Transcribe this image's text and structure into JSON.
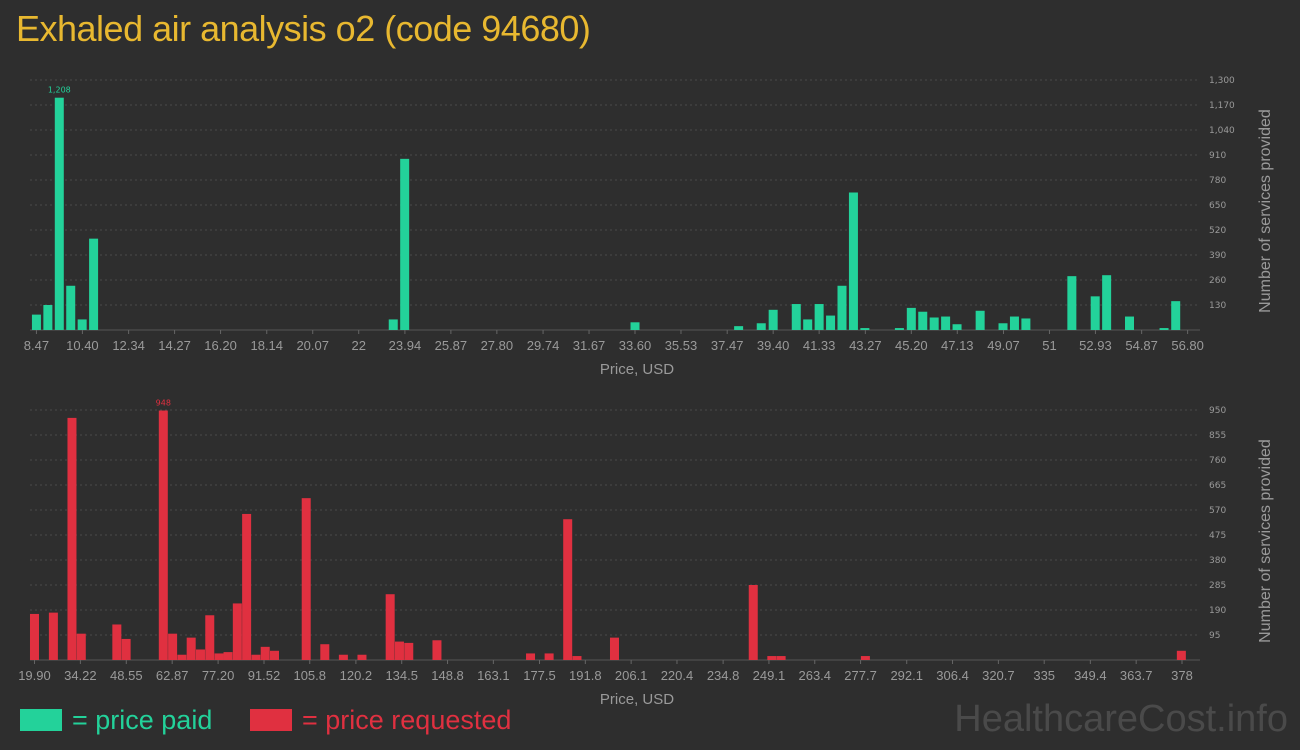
{
  "title": "Exhaled air analysis o2 (code 94680)",
  "watermark": "HealthcareCost.info",
  "legend": {
    "paid_label": "= price paid",
    "requested_label": "= price requested"
  },
  "colors": {
    "paid": "#23d29a",
    "requested": "#e03040",
    "grid": "#4a4a4a",
    "tick_text": "#9a9a9a",
    "background": "#2e2e2e"
  },
  "chart_data": [
    {
      "type": "bar",
      "name": "price paid",
      "xlabel": "Price, USD",
      "ylabel": "Number of services provided",
      "ylim": [
        0,
        1300
      ],
      "yticks": [
        130,
        260,
        390,
        520,
        650,
        780,
        910,
        1040,
        1170,
        1300
      ],
      "ytick_labels": [
        "130",
        "260",
        "390",
        "520",
        "650",
        "780",
        "910",
        "1,040",
        "1,170",
        "1,300"
      ],
      "xlim": [
        8.2,
        56.9
      ],
      "xticks": [
        8.47,
        10.4,
        12.34,
        14.27,
        16.2,
        18.14,
        20.07,
        22,
        23.94,
        25.87,
        27.8,
        29.74,
        31.67,
        33.6,
        35.53,
        37.47,
        39.4,
        41.33,
        43.27,
        45.2,
        47.13,
        49.07,
        51,
        52.93,
        54.87,
        56.8
      ],
      "xtick_labels": [
        "8.47",
        "10.40",
        "12.34",
        "14.27",
        "16.20",
        "18.14",
        "20.07",
        "22",
        "23.94",
        "25.87",
        "27.80",
        "29.74",
        "31.67",
        "33.60",
        "35.53",
        "37.47",
        "39.40",
        "41.33",
        "43.27",
        "45.20",
        "47.13",
        "49.07",
        "51",
        "52.93",
        "54.87",
        "56.80"
      ],
      "peak_label": "1,208",
      "x": [
        8.47,
        8.95,
        9.43,
        9.91,
        10.39,
        10.87,
        23.45,
        23.93,
        33.6,
        37.95,
        38.9,
        39.4,
        40.37,
        40.85,
        41.33,
        41.81,
        42.29,
        42.77,
        43.25,
        44.7,
        45.2,
        45.68,
        46.16,
        46.64,
        47.12,
        48.09,
        49.05,
        49.53,
        50.01,
        51.94,
        52.92,
        53.4,
        54.36,
        55.81,
        56.3
      ],
      "values": [
        80,
        130,
        1208,
        230,
        55,
        475,
        55,
        890,
        40,
        20,
        35,
        105,
        135,
        55,
        135,
        75,
        230,
        715,
        10,
        10,
        115,
        95,
        65,
        70,
        30,
        100,
        35,
        70,
        60,
        280,
        175,
        285,
        70,
        10,
        150
      ]
    },
    {
      "type": "bar",
      "name": "price requested",
      "xlabel": "Price, USD",
      "ylabel": "Number of services provided",
      "ylim": [
        0,
        950
      ],
      "yticks": [
        95,
        190,
        285,
        380,
        475,
        570,
        665,
        760,
        855,
        950
      ],
      "ytick_labels": [
        "95",
        "190",
        "285",
        "380",
        "475",
        "570",
        "665",
        "760",
        "855",
        "950"
      ],
      "xlim": [
        18.5,
        380.5
      ],
      "xticks": [
        19.9,
        34.22,
        48.55,
        62.87,
        77.2,
        91.52,
        105.8,
        120.2,
        134.5,
        148.8,
        163.1,
        177.5,
        191.8,
        206.1,
        220.4,
        234.8,
        249.1,
        263.4,
        277.7,
        292.1,
        306.4,
        320.7,
        335,
        349.4,
        363.7,
        378
      ],
      "xtick_labels": [
        "19.90",
        "34.22",
        "48.55",
        "62.87",
        "77.20",
        "91.52",
        "105.8",
        "120.2",
        "134.5",
        "148.8",
        "163.1",
        "177.5",
        "191.8",
        "206.1",
        "220.4",
        "234.8",
        "249.1",
        "263.4",
        "277.7",
        "292.1",
        "306.4",
        "320.7",
        "335",
        "349.4",
        "363.7",
        "378"
      ],
      "peak_label": "948",
      "x": [
        19.9,
        25.8,
        31.6,
        34.5,
        45.6,
        48.5,
        60.1,
        63.0,
        65.9,
        68.8,
        71.7,
        74.6,
        77.5,
        80.3,
        83.2,
        86.1,
        89.0,
        91.9,
        94.8,
        104.7,
        110.5,
        116.3,
        122.1,
        130.9,
        133.8,
        136.7,
        145.5,
        174.7,
        180.5,
        186.3,
        189.2,
        200.9,
        244.2,
        250.0,
        252.9,
        279.2,
        377.8
      ],
      "values": [
        175,
        180,
        920,
        100,
        135,
        80,
        948,
        100,
        20,
        85,
        40,
        170,
        25,
        30,
        215,
        555,
        20,
        50,
        35,
        615,
        60,
        20,
        20,
        250,
        70,
        65,
        75,
        25,
        25,
        535,
        15,
        85,
        285,
        15,
        15,
        15,
        35
      ]
    }
  ]
}
